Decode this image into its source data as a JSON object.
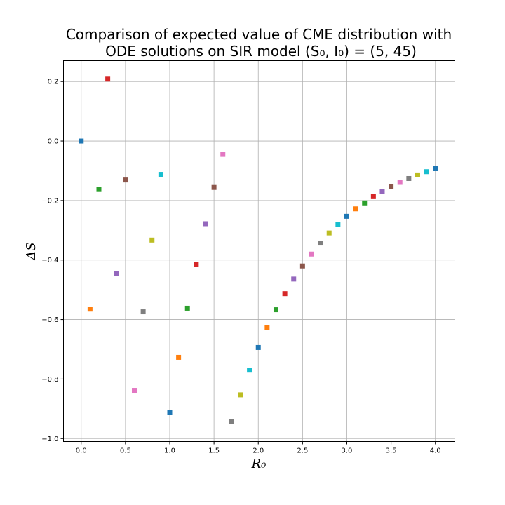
{
  "chart_data": {
    "type": "scatter",
    "title_lines": [
      "Comparison of expected value of CME distribution with",
      "ODE solutions on SIR model (S₀, I₀) = (5, 45)"
    ],
    "xlabel": "R₀",
    "ylabel": "ΔS",
    "xlim": [
      -0.2,
      4.22
    ],
    "ylim": [
      -1.01,
      0.27
    ],
    "x_ticks": [
      0.0,
      0.5,
      1.0,
      1.5,
      2.0,
      2.5,
      3.0,
      3.5,
      4.0
    ],
    "x_tick_labels": [
      "0.0",
      "0.5",
      "1.0",
      "1.5",
      "2.0",
      "2.5",
      "3.0",
      "3.5",
      "4.0"
    ],
    "y_ticks": [
      0.2,
      0.0,
      -0.2,
      -0.4,
      -0.6,
      -0.8,
      -1.0
    ],
    "y_tick_labels": [
      "0.2",
      "0.0",
      "−0.2",
      "−0.4",
      "−0.6",
      "−0.8",
      "−1.0"
    ],
    "grid": true,
    "marker": "square",
    "colors": [
      "#1f77b4",
      "#ff7f0e",
      "#2ca02c",
      "#d62728",
      "#9467bd",
      "#8c564b",
      "#e377c2",
      "#7f7f7f",
      "#bcbd22",
      "#17becf"
    ],
    "points": [
      {
        "x": 0.0,
        "y": 0.0
      },
      {
        "x": 0.1,
        "y": -0.565
      },
      {
        "x": 0.2,
        "y": -0.163
      },
      {
        "x": 0.3,
        "y": 0.208
      },
      {
        "x": 0.4,
        "y": -0.446
      },
      {
        "x": 0.5,
        "y": -0.131
      },
      {
        "x": 0.6,
        "y": -0.838
      },
      {
        "x": 0.7,
        "y": -0.574
      },
      {
        "x": 0.8,
        "y": -0.333
      },
      {
        "x": 0.9,
        "y": -0.112
      },
      {
        "x": 1.0,
        "y": -0.912
      },
      {
        "x": 1.1,
        "y": -0.727
      },
      {
        "x": 1.2,
        "y": -0.562
      },
      {
        "x": 1.3,
        "y": -0.415
      },
      {
        "x": 1.4,
        "y": -0.278
      },
      {
        "x": 1.5,
        "y": -0.156
      },
      {
        "x": 1.6,
        "y": -0.045
      },
      {
        "x": 1.7,
        "y": -0.942
      },
      {
        "x": 1.8,
        "y": -0.853
      },
      {
        "x": 1.9,
        "y": -0.77
      },
      {
        "x": 2.0,
        "y": -0.694
      },
      {
        "x": 2.1,
        "y": -0.628
      },
      {
        "x": 2.2,
        "y": -0.567
      },
      {
        "x": 2.3,
        "y": -0.513
      },
      {
        "x": 2.4,
        "y": -0.464
      },
      {
        "x": 2.5,
        "y": -0.42
      },
      {
        "x": 2.6,
        "y": -0.38
      },
      {
        "x": 2.7,
        "y": -0.343
      },
      {
        "x": 2.8,
        "y": -0.309
      },
      {
        "x": 2.9,
        "y": -0.281
      },
      {
        "x": 3.0,
        "y": -0.253
      },
      {
        "x": 3.1,
        "y": -0.228
      },
      {
        "x": 3.2,
        "y": -0.208
      },
      {
        "x": 3.3,
        "y": -0.187
      },
      {
        "x": 3.4,
        "y": -0.169
      },
      {
        "x": 3.5,
        "y": -0.154
      },
      {
        "x": 3.6,
        "y": -0.139
      },
      {
        "x": 3.7,
        "y": -0.126
      },
      {
        "x": 3.8,
        "y": -0.114
      },
      {
        "x": 3.9,
        "y": -0.103
      },
      {
        "x": 4.0,
        "y": -0.093
      }
    ]
  }
}
